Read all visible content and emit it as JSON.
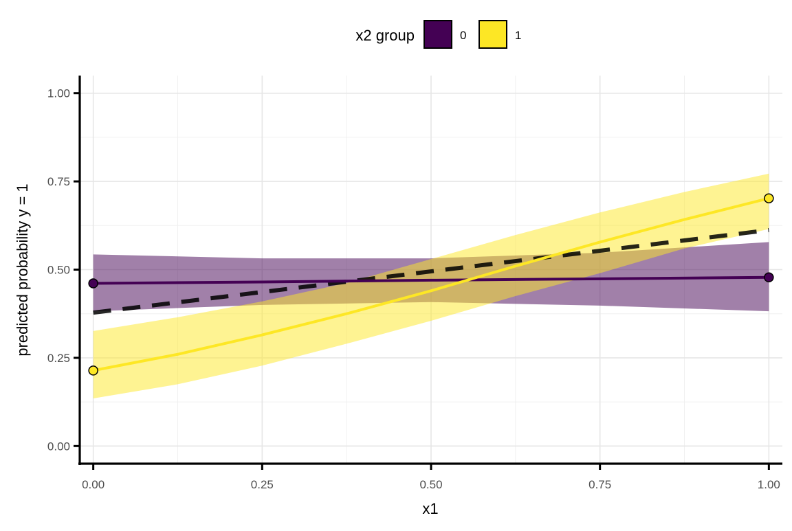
{
  "chart_data": {
    "type": "line",
    "xlabel": "x1",
    "ylabel": "predicted probability y = 1",
    "xlim": [
      -0.02,
      1.02
    ],
    "ylim": [
      -0.05,
      1.05
    ],
    "x_ticks": [
      0.0,
      0.25,
      0.5,
      0.75,
      1.0
    ],
    "x_tick_labels": [
      "0.00",
      "0.25",
      "0.50",
      "0.75",
      "1.00"
    ],
    "y_ticks": [
      0.0,
      0.25,
      0.5,
      0.75,
      1.0
    ],
    "y_tick_labels": [
      "0.00",
      "0.25",
      "0.50",
      "0.75",
      "1.00"
    ],
    "grid": true,
    "legend": {
      "title": "x2 group",
      "position": "top",
      "entries": [
        {
          "label": "0",
          "color": "#440154"
        },
        {
          "label": "1",
          "color": "#FDE725"
        }
      ]
    },
    "series": [
      {
        "name": "0",
        "color": "#440154",
        "line": [
          {
            "x": 0.0,
            "y": 0.461
          },
          {
            "x": 0.25,
            "y": 0.465
          },
          {
            "x": 0.5,
            "y": 0.47
          },
          {
            "x": 0.75,
            "y": 0.474
          },
          {
            "x": 1.0,
            "y": 0.478
          }
        ],
        "ribbon": [
          {
            "x": 0.0,
            "lower": 0.382,
            "upper": 0.543
          },
          {
            "x": 0.25,
            "lower": 0.4,
            "upper": 0.532
          },
          {
            "x": 0.5,
            "lower": 0.408,
            "upper": 0.532
          },
          {
            "x": 0.75,
            "lower": 0.398,
            "upper": 0.548
          },
          {
            "x": 1.0,
            "lower": 0.382,
            "upper": 0.578
          }
        ],
        "points": [
          {
            "x": 0.0,
            "y": 0.461
          },
          {
            "x": 1.0,
            "y": 0.478
          }
        ]
      },
      {
        "name": "1",
        "color": "#FDE725",
        "line": [
          {
            "x": 0.0,
            "y": 0.214
          },
          {
            "x": 0.125,
            "y": 0.26
          },
          {
            "x": 0.25,
            "y": 0.315
          },
          {
            "x": 0.375,
            "y": 0.375
          },
          {
            "x": 0.5,
            "y": 0.44
          },
          {
            "x": 0.625,
            "y": 0.51
          },
          {
            "x": 0.75,
            "y": 0.578
          },
          {
            "x": 0.875,
            "y": 0.642
          },
          {
            "x": 1.0,
            "y": 0.702
          }
        ],
        "ribbon": [
          {
            "x": 0.0,
            "lower": 0.135,
            "upper": 0.326
          },
          {
            "x": 0.125,
            "lower": 0.175,
            "upper": 0.365
          },
          {
            "x": 0.25,
            "lower": 0.228,
            "upper": 0.41
          },
          {
            "x": 0.375,
            "lower": 0.29,
            "upper": 0.462
          },
          {
            "x": 0.5,
            "lower": 0.355,
            "upper": 0.53
          },
          {
            "x": 0.625,
            "lower": 0.425,
            "upper": 0.598
          },
          {
            "x": 0.75,
            "lower": 0.49,
            "upper": 0.662
          },
          {
            "x": 0.875,
            "lower": 0.56,
            "upper": 0.72
          },
          {
            "x": 1.0,
            "lower": 0.615,
            "upper": 0.772
          }
        ],
        "points": [
          {
            "x": 0.0,
            "y": 0.214
          },
          {
            "x": 1.0,
            "y": 0.702
          }
        ]
      }
    ],
    "overall_line": {
      "style": "dashed",
      "color": "#000000",
      "line": [
        {
          "x": 0.0,
          "y": 0.378
        },
        {
          "x": 1.0,
          "y": 0.612
        }
      ]
    }
  }
}
